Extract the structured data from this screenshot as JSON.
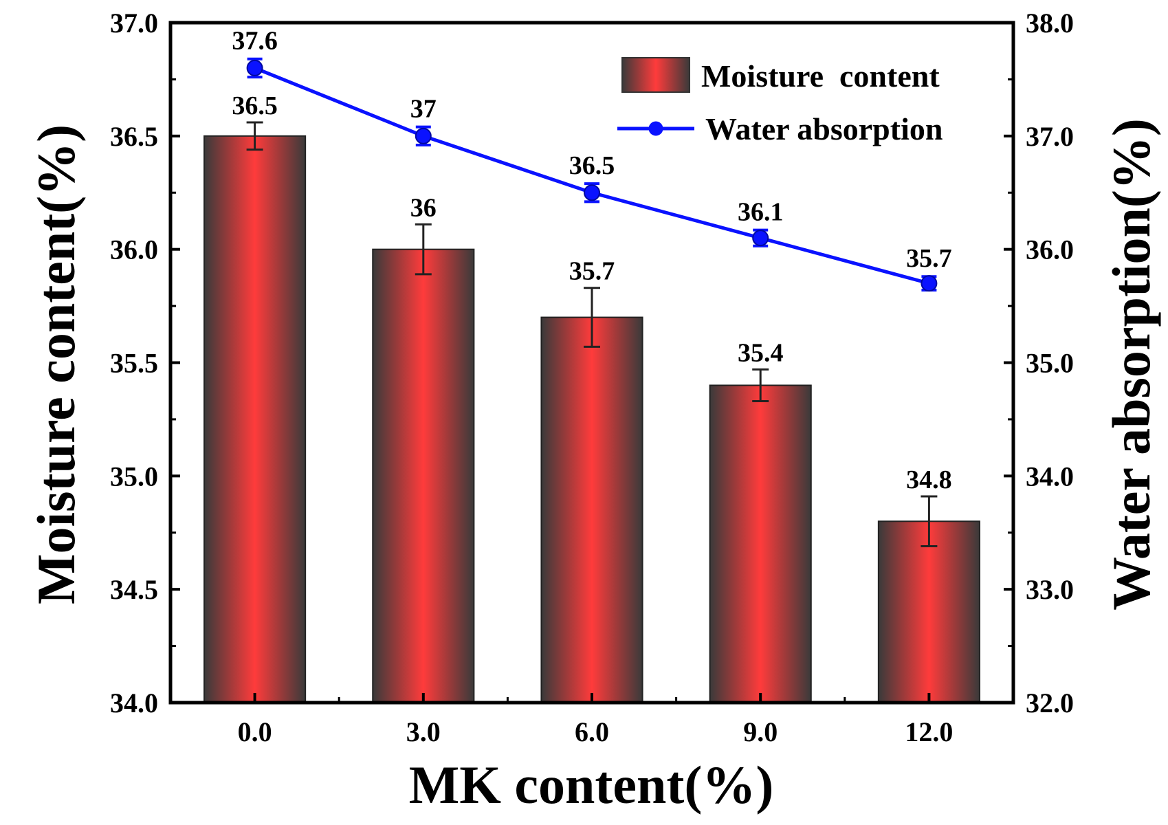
{
  "chart_data": {
    "type": "bar",
    "categories": [
      "0.0",
      "3.0",
      "6.0",
      "9.0",
      "12.0"
    ],
    "series": [
      {
        "name": "Moisture  content",
        "type": "bar",
        "axis": "left",
        "color": "#ff3b3b",
        "values": [
          36.5,
          36.0,
          35.7,
          35.4,
          34.8
        ],
        "errors": [
          0.06,
          0.11,
          0.13,
          0.07,
          0.11
        ],
        "labels": [
          "36.5",
          "36",
          "35.7",
          "35.4",
          "34.8"
        ]
      },
      {
        "name": "Water absorption",
        "type": "line",
        "axis": "right",
        "color": "#0a12ff",
        "values": [
          37.6,
          37.0,
          36.5,
          36.1,
          35.7
        ],
        "errors": [
          0.08,
          0.08,
          0.08,
          0.07,
          0.06
        ],
        "labels": [
          "37.6",
          "37",
          "36.5",
          "36.1",
          "35.7"
        ]
      }
    ],
    "xlabel": "MK content(%)",
    "ylabel": "Moisture content(%)",
    "y2label": "Water absorption(%)",
    "ylim": [
      34.0,
      37.0
    ],
    "y2lim": [
      32.0,
      38.0
    ],
    "yticks": [
      "34.0",
      "34.5",
      "35.0",
      "35.5",
      "36.0",
      "36.5",
      "37.0"
    ],
    "y2ticks": [
      "32.0",
      "33.0",
      "34.0",
      "35.0",
      "36.0",
      "37.0",
      "38.0"
    ],
    "legend_position": "top-right",
    "grid": false
  }
}
